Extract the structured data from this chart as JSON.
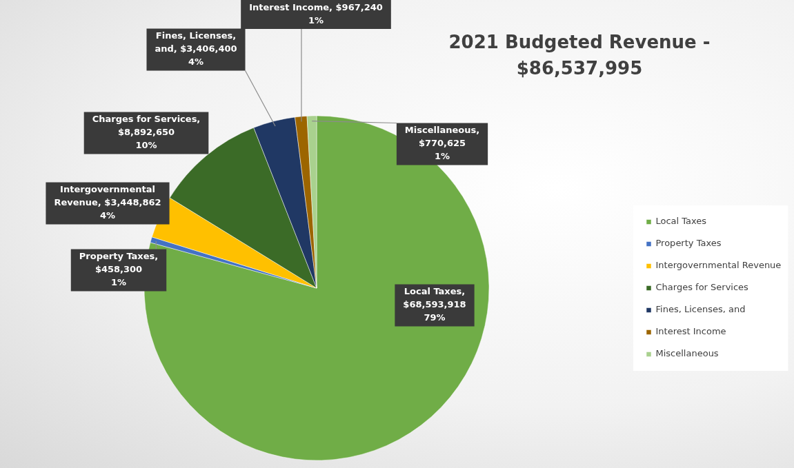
{
  "chart_data": {
    "type": "pie",
    "title": "2021 Budgeted Revenue -\n$86,537,995",
    "categories": [
      "Local Taxes",
      "Property Taxes",
      "Intergovernmental Revenue",
      "Charges for Services",
      "Fines, Licenses, and",
      "Interest Income",
      "Miscellaneous"
    ],
    "values": [
      68593918,
      458300,
      3448862,
      8892650,
      3406400,
      967240,
      770625
    ],
    "colors": [
      "#70ad47",
      "#4472c4",
      "#ffc000",
      "#3b6b27",
      "#203864",
      "#9c6500",
      "#a9d18e"
    ],
    "value_labels": [
      "Local Taxes,\n$68,593,918\n79%",
      "Property Taxes,\n$458,300\n1%",
      "Intergovernmental\nRevenue, $3,448,862\n4%",
      "Charges for Services,\n$8,892,650\n10%",
      "Fines, Licenses,\nand, $3,406,400\n4%",
      "Interest Income, $967,240\n1%",
      "Miscellaneous,\n$770,625\n1%"
    ],
    "legend": "right"
  }
}
